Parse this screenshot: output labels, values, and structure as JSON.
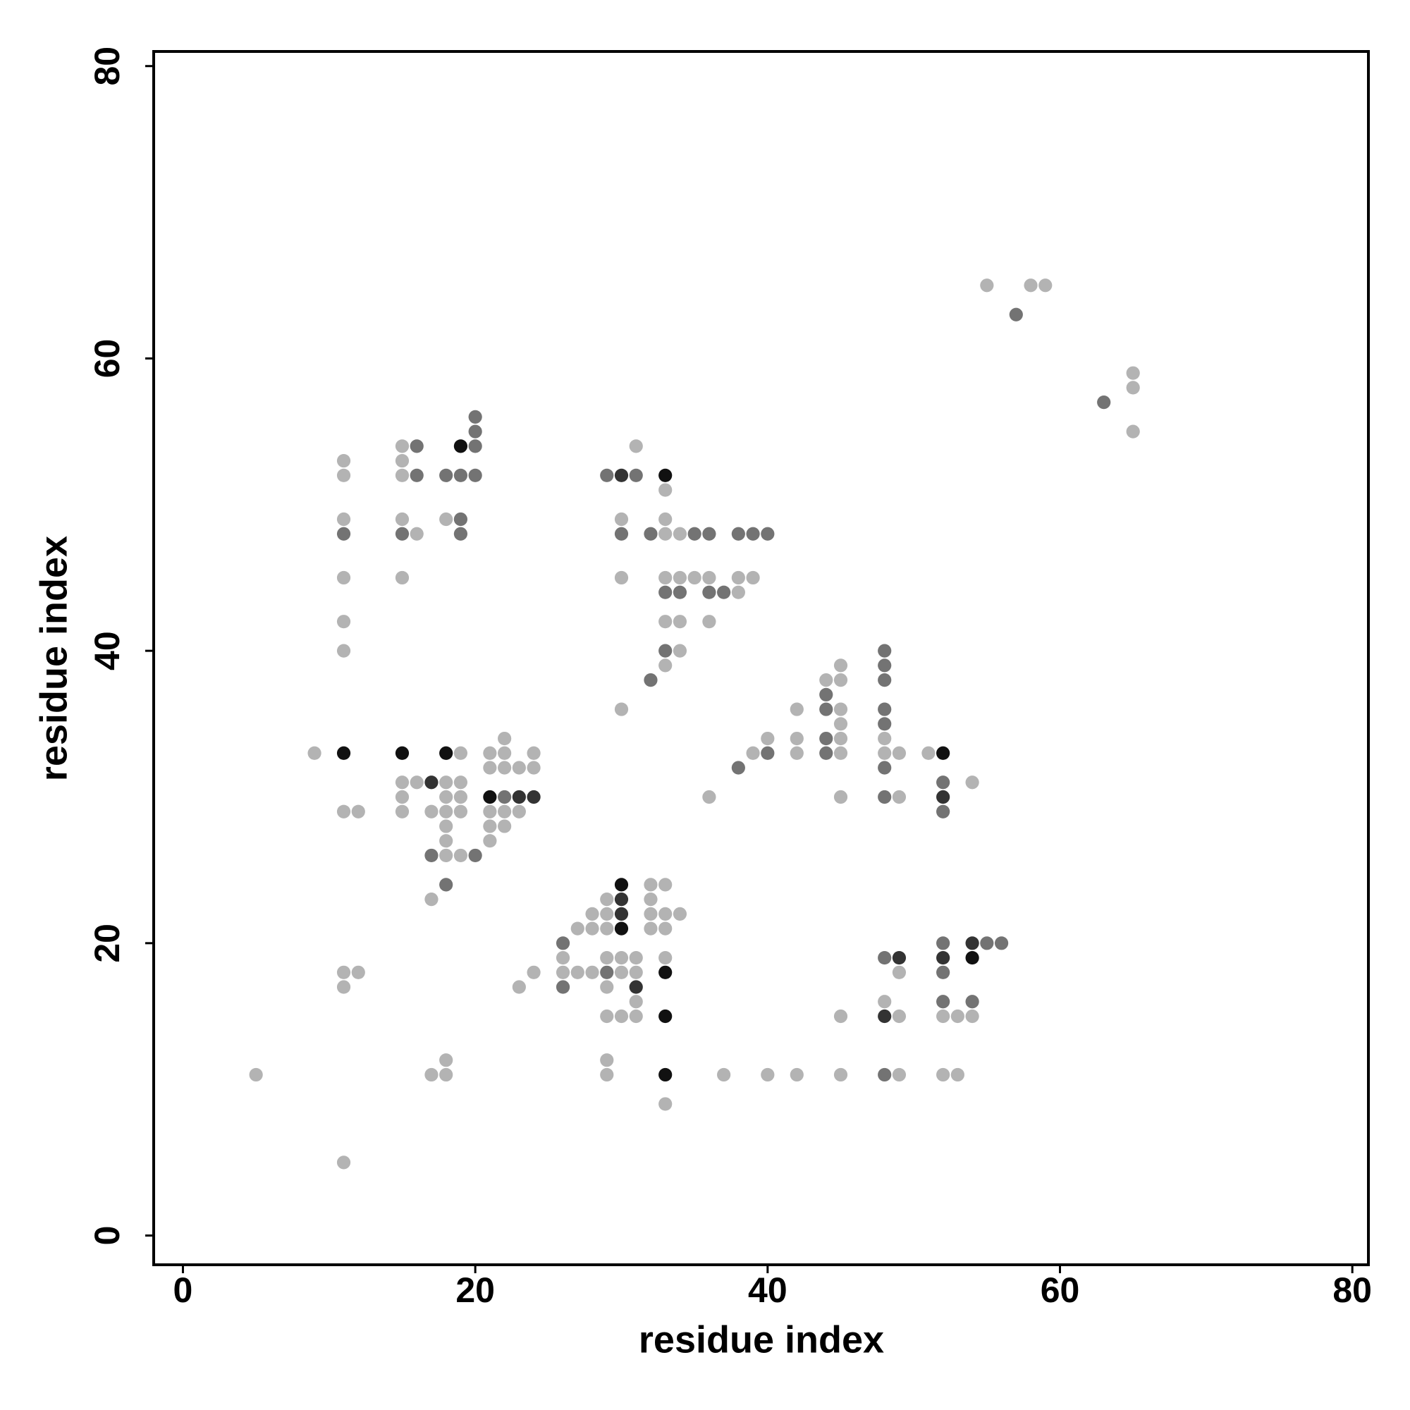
{
  "chart_data": {
    "type": "scatter",
    "xlabel": "residue index",
    "ylabel": "residue index",
    "xlim": [
      -2,
      81.1
    ],
    "ylim": [
      -2,
      81
    ],
    "xticks": [
      0,
      20,
      40,
      60,
      80
    ],
    "yticks": [
      0,
      20,
      40,
      60,
      80
    ],
    "grid": false,
    "series": [
      {
        "color": "#b3b3b3",
        "x": [
          55,
          58,
          59,
          65,
          65,
          65,
          31,
          15,
          11,
          15,
          11,
          15,
          33,
          11,
          15,
          18,
          30,
          33,
          16,
          33,
          34,
          11,
          15,
          30,
          33,
          34,
          35,
          36,
          38,
          39,
          38,
          11,
          33,
          34,
          36,
          11,
          34,
          33,
          45,
          44,
          45,
          30,
          42,
          45,
          45,
          22,
          40,
          42,
          45,
          48,
          9,
          19,
          21,
          22,
          24,
          39,
          42,
          45,
          48,
          49,
          51,
          21,
          22,
          23,
          24,
          15,
          16,
          18,
          19,
          54,
          15,
          18,
          19,
          36,
          45,
          49,
          11,
          12,
          15,
          17,
          18,
          19,
          21,
          22,
          23,
          18,
          21,
          22,
          18,
          21,
          18,
          19,
          32,
          33,
          17,
          29,
          32,
          28,
          29,
          32,
          33,
          34,
          27,
          28,
          29,
          32,
          33,
          26,
          29,
          30,
          31,
          33,
          11,
          12,
          24,
          26,
          27,
          28,
          30,
          31,
          49,
          11,
          23,
          29,
          31,
          48,
          29,
          30,
          31,
          45,
          49,
          52,
          53,
          54,
          18,
          29,
          5,
          17,
          18,
          29,
          37,
          40,
          42,
          45,
          49,
          52,
          53,
          33,
          11
        ],
        "values": [
          65,
          65,
          65,
          59,
          58,
          55,
          54,
          54,
          53,
          53,
          52,
          52,
          51,
          49,
          49,
          49,
          49,
          49,
          48,
          48,
          48,
          45,
          45,
          45,
          45,
          45,
          45,
          45,
          45,
          45,
          44,
          42,
          42,
          42,
          42,
          40,
          40,
          39,
          39,
          38,
          38,
          36,
          36,
          36,
          35,
          34,
          34,
          34,
          34,
          34,
          33,
          33,
          33,
          33,
          33,
          33,
          33,
          33,
          33,
          33,
          33,
          32,
          32,
          32,
          32,
          31,
          31,
          31,
          31,
          31,
          30,
          30,
          30,
          30,
          30,
          30,
          29,
          29,
          29,
          29,
          29,
          29,
          29,
          29,
          29,
          28,
          28,
          28,
          27,
          27,
          26,
          26,
          24,
          24,
          23,
          23,
          23,
          22,
          22,
          22,
          22,
          22,
          21,
          21,
          21,
          21,
          21,
          19,
          19,
          19,
          19,
          19,
          18,
          18,
          18,
          18,
          18,
          18,
          18,
          18,
          18,
          17,
          17,
          17,
          16,
          16,
          15,
          15,
          15,
          15,
          15,
          15,
          15,
          15,
          12,
          12,
          11,
          11,
          11,
          11,
          11,
          11,
          11,
          11,
          11,
          11,
          11,
          9,
          5
        ]
      },
      {
        "color": "#737373",
        "x": [
          57,
          63,
          20,
          20,
          16,
          20,
          16,
          18,
          19,
          20,
          29,
          31,
          19,
          11,
          15,
          19,
          30,
          32,
          35,
          36,
          38,
          39,
          40,
          33,
          34,
          36,
          37,
          33,
          48,
          48,
          32,
          48,
          44,
          44,
          48,
          48,
          44,
          40,
          44,
          38,
          48,
          52,
          22,
          48,
          52,
          17,
          20,
          18,
          26,
          52,
          55,
          56,
          48,
          29,
          52,
          26,
          52,
          54,
          48
        ],
        "values": [
          63,
          57,
          56,
          55,
          54,
          54,
          52,
          52,
          52,
          52,
          52,
          52,
          49,
          48,
          48,
          48,
          48,
          48,
          48,
          48,
          48,
          48,
          48,
          44,
          44,
          44,
          44,
          40,
          40,
          39,
          38,
          38,
          37,
          36,
          36,
          35,
          34,
          33,
          33,
          32,
          32,
          31,
          30,
          30,
          29,
          26,
          26,
          24,
          20,
          20,
          20,
          20,
          19,
          18,
          18,
          17,
          16,
          16,
          11
        ]
      },
      {
        "color": "#333333",
        "x": [
          30,
          17,
          23,
          24,
          52,
          30,
          30,
          54,
          49,
          52,
          31,
          48
        ],
        "values": [
          52,
          31,
          30,
          30,
          30,
          23,
          22,
          20,
          19,
          19,
          17,
          15
        ]
      },
      {
        "color": "#111111",
        "x": [
          19,
          33,
          11,
          15,
          18,
          52,
          21,
          30,
          30,
          54,
          33,
          33,
          33
        ],
        "values": [
          54,
          52,
          33,
          33,
          33,
          33,
          30,
          24,
          21,
          19,
          18,
          15,
          11
        ]
      }
    ]
  }
}
